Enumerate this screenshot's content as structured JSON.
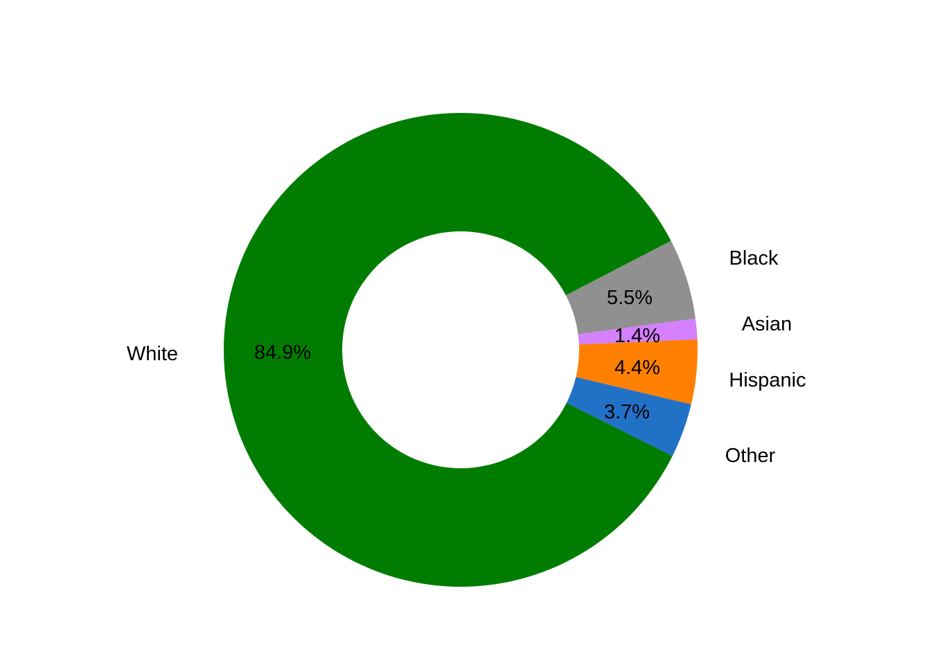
{
  "chart_data": {
    "type": "pie",
    "style": "donut",
    "title": "",
    "categories": [
      "Black",
      "Asian",
      "Hispanic",
      "Other",
      "White"
    ],
    "values": [
      5.5,
      1.4,
      4.4,
      3.7,
      84.9
    ],
    "labels": [
      "5.5%",
      "1.4%",
      "4.4%",
      "3.7%",
      "84.9%"
    ],
    "colors": [
      "#909090",
      "#d580ff",
      "#ff8000",
      "#2171c7",
      "#007d00"
    ],
    "legend": "none"
  }
}
